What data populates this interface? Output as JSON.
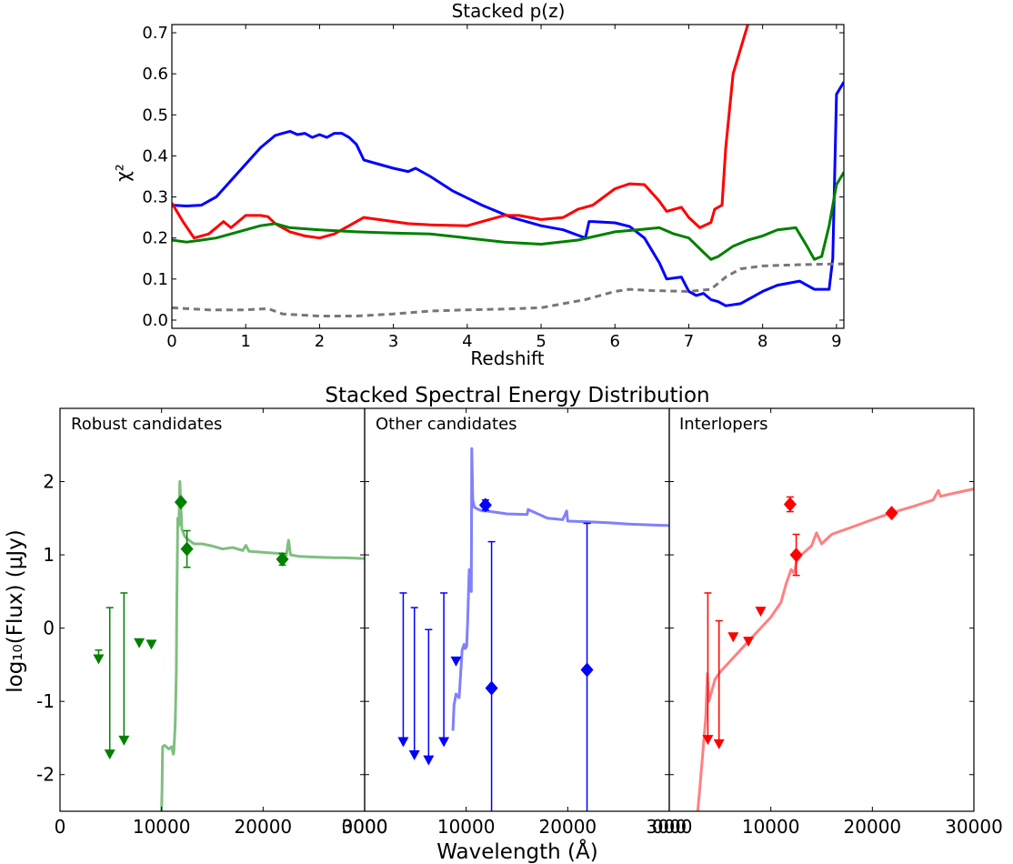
{
  "chart_data": [
    {
      "type": "line",
      "title": "Stacked p(z)",
      "xlabel": "Redshift",
      "ylabel": "χ²",
      "xlim": [
        0,
        9.1
      ],
      "ylim": [
        -0.02,
        0.72
      ],
      "xticks": [
        "0",
        "1",
        "2",
        "3",
        "4",
        "5",
        "6",
        "7",
        "8",
        "9"
      ],
      "yticks": [
        "0.0",
        "0.1",
        "0.2",
        "0.3",
        "0.4",
        "0.5",
        "0.6",
        "0.7"
      ],
      "series": [
        {
          "name": "blue",
          "color": "#0000ff",
          "dashed": false,
          "x": [
            0,
            0.2,
            0.4,
            0.6,
            0.8,
            1.0,
            1.2,
            1.4,
            1.5,
            1.6,
            1.7,
            1.8,
            1.9,
            2.0,
            2.1,
            2.2,
            2.3,
            2.4,
            2.5,
            2.6,
            2.8,
            3.0,
            3.2,
            3.3,
            3.5,
            3.8,
            4.2,
            4.6,
            5.0,
            5.3,
            5.6,
            5.65,
            5.7,
            6.0,
            6.2,
            6.4,
            6.6,
            6.7,
            6.9,
            7.0,
            7.1,
            7.2,
            7.3,
            7.4,
            7.5,
            7.7,
            8.0,
            8.2,
            8.5,
            8.7,
            8.9,
            8.95,
            9.0,
            9.1
          ],
          "y": [
            0.28,
            0.278,
            0.28,
            0.3,
            0.34,
            0.38,
            0.42,
            0.45,
            0.455,
            0.46,
            0.452,
            0.455,
            0.445,
            0.452,
            0.445,
            0.455,
            0.455,
            0.445,
            0.428,
            0.39,
            0.38,
            0.37,
            0.362,
            0.37,
            0.35,
            0.315,
            0.28,
            0.25,
            0.23,
            0.22,
            0.2,
            0.24,
            0.24,
            0.237,
            0.228,
            0.2,
            0.14,
            0.1,
            0.105,
            0.07,
            0.06,
            0.065,
            0.05,
            0.045,
            0.035,
            0.04,
            0.07,
            0.085,
            0.095,
            0.075,
            0.075,
            0.15,
            0.55,
            0.58
          ]
        },
        {
          "name": "red",
          "color": "#ff0000",
          "dashed": false,
          "x": [
            0,
            0.15,
            0.3,
            0.5,
            0.7,
            0.8,
            1.0,
            1.2,
            1.3,
            1.4,
            1.6,
            1.8,
            2.0,
            2.2,
            2.4,
            2.6,
            2.8,
            3.0,
            3.2,
            3.5,
            4.0,
            4.5,
            4.7,
            5.0,
            5.3,
            5.5,
            5.7,
            6.0,
            6.2,
            6.4,
            6.6,
            6.7,
            6.9,
            7.0,
            7.15,
            7.3,
            7.35,
            7.45,
            7.5,
            7.6,
            7.8
          ],
          "y": [
            0.285,
            0.24,
            0.2,
            0.21,
            0.24,
            0.225,
            0.255,
            0.255,
            0.252,
            0.235,
            0.215,
            0.205,
            0.2,
            0.21,
            0.23,
            0.25,
            0.245,
            0.24,
            0.235,
            0.232,
            0.23,
            0.255,
            0.255,
            0.245,
            0.25,
            0.27,
            0.28,
            0.32,
            0.332,
            0.33,
            0.29,
            0.265,
            0.275,
            0.25,
            0.225,
            0.238,
            0.27,
            0.28,
            0.42,
            0.6,
            0.72
          ]
        },
        {
          "name": "green",
          "color": "#008000",
          "dashed": false,
          "x": [
            0,
            0.2,
            0.4,
            0.6,
            0.8,
            1.0,
            1.2,
            1.4,
            1.6,
            2.0,
            2.5,
            3.0,
            3.5,
            4.0,
            4.5,
            5.0,
            5.5,
            6.0,
            6.3,
            6.6,
            6.8,
            7.0,
            7.2,
            7.3,
            7.4,
            7.6,
            7.8,
            8.0,
            8.2,
            8.45,
            8.6,
            8.7,
            8.8,
            8.9,
            9.0,
            9.1
          ],
          "y": [
            0.195,
            0.19,
            0.195,
            0.2,
            0.21,
            0.22,
            0.23,
            0.235,
            0.225,
            0.22,
            0.215,
            0.212,
            0.21,
            0.2,
            0.19,
            0.185,
            0.195,
            0.215,
            0.22,
            0.225,
            0.21,
            0.2,
            0.165,
            0.148,
            0.155,
            0.18,
            0.195,
            0.205,
            0.22,
            0.225,
            0.18,
            0.148,
            0.155,
            0.23,
            0.33,
            0.36
          ]
        },
        {
          "name": "gray-dashed",
          "color": "#777777",
          "dashed": true,
          "x": [
            0,
            0.5,
            1.0,
            1.3,
            1.5,
            2.0,
            2.5,
            3.0,
            3.5,
            4.0,
            4.5,
            5.0,
            5.3,
            5.6,
            5.8,
            6.0,
            6.2,
            6.5,
            7.0,
            7.3,
            7.5,
            7.7,
            8.0,
            8.5,
            9.1
          ],
          "y": [
            0.03,
            0.025,
            0.025,
            0.028,
            0.015,
            0.01,
            0.01,
            0.015,
            0.022,
            0.025,
            0.027,
            0.03,
            0.04,
            0.05,
            0.06,
            0.07,
            0.075,
            0.072,
            0.07,
            0.075,
            0.105,
            0.125,
            0.132,
            0.135,
            0.137
          ]
        }
      ]
    },
    {
      "type": "scatter",
      "title": "Stacked Spectral Energy Distribution",
      "xlabel": "Wavelength (Å)",
      "ylabel": "log₁₀(Flux) (μJy)",
      "ylim": [
        -2.5,
        3.0
      ],
      "yticks": [
        "2",
        "1",
        "0",
        "-1",
        "-2"
      ],
      "panels": [
        {
          "label": "Robust candidates",
          "xlim": [
            0,
            30000
          ],
          "xticks": [
            "0",
            "10000",
            "20000",
            "3000"
          ],
          "model_color": "#7fbf7f",
          "point_color": "#008000",
          "model": {
            "x": [
              10000,
              10050,
              10100,
              10300,
              10700,
              11000,
              11150,
              11200,
              11350,
              11450,
              11500,
              11600,
              11700,
              11800,
              12000,
              12300,
              12700,
              13200,
              14000,
              15000,
              16000,
              17000,
              18000,
              18300,
              18600,
              19500,
              20500,
              21500,
              22300,
              22500,
              22700,
              23500,
              25000,
              27000,
              28000,
              30000
            ],
            "y": [
              -2.5,
              -2.2,
              -1.62,
              -1.6,
              -1.65,
              -1.62,
              -1.72,
              -1.7,
              -1.3,
              -0.6,
              0.3,
              1.5,
              1.4,
              2.0,
              1.35,
              1.25,
              1.2,
              1.15,
              1.15,
              1.12,
              1.08,
              1.1,
              1.06,
              1.13,
              1.05,
              1.04,
              1.03,
              1.02,
              1.0,
              1.2,
              1.0,
              0.98,
              0.97,
              0.96,
              0.96,
              0.95
            ]
          },
          "detections": [
            {
              "x": 11900,
              "y": 1.72,
              "yerr": 0.03
            },
            {
              "x": 12500,
              "y": 1.08,
              "yerr": 0.25
            },
            {
              "x": 21900,
              "y": 0.94,
              "yerr": 0.08
            }
          ],
          "upper_limits": [
            {
              "x": 3800,
              "y": -0.42,
              "bar_top": -0.3
            },
            {
              "x": 4900,
              "y": -1.72,
              "bar_top": 0.28
            },
            {
              "x": 6300,
              "y": -1.53,
              "bar_top": 0.48
            },
            {
              "x": 7800,
              "y": -0.2,
              "bar_top": -0.15
            },
            {
              "x": 9000,
              "y": -0.22,
              "bar_top": -0.17
            }
          ]
        },
        {
          "label": "Other candidates",
          "xlim": [
            0,
            30000
          ],
          "xticks": [
            "0000",
            "10000",
            "20000",
            "3000"
          ],
          "model_color": "#8080ff",
          "point_color": "#0000ff",
          "model": {
            "x": [
              8700,
              8800,
              9000,
              9300,
              9600,
              9800,
              9900,
              10050,
              10150,
              10300,
              10500,
              10550,
              10650,
              10800,
              11200,
              11600,
              12000,
              13000,
              14000,
              16000,
              16100,
              18000,
              19500,
              19900,
              20000,
              22000,
              24000,
              26000,
              28000,
              30000
            ],
            "y": [
              -1.4,
              -1.05,
              -0.9,
              -0.95,
              -0.3,
              -0.22,
              -0.28,
              -0.25,
              0.1,
              0.8,
              0.5,
              2.45,
              1.75,
              1.65,
              1.62,
              1.6,
              1.6,
              1.58,
              1.56,
              1.55,
              1.62,
              1.5,
              1.48,
              1.6,
              1.46,
              1.45,
              1.44,
              1.42,
              1.41,
              1.4
            ]
          },
          "detections": [
            {
              "x": 11900,
              "y": 1.68,
              "yerr": 0.07
            },
            {
              "x": 12500,
              "y": -0.82,
              "yerr": 2.0
            },
            {
              "x": 21900,
              "y": -0.57,
              "yerr": 2.0
            }
          ],
          "upper_limits": [
            {
              "x": 3800,
              "y": -1.55,
              "bar_top": 0.48
            },
            {
              "x": 4900,
              "y": -1.73,
              "bar_top": 0.28
            },
            {
              "x": 6300,
              "y": -1.8,
              "bar_top": -0.02
            },
            {
              "x": 7800,
              "y": -1.55,
              "bar_top": 0.48
            },
            {
              "x": 9000,
              "y": -0.45,
              "bar_top": -0.4
            }
          ]
        },
        {
          "label": "Interlopers",
          "xlim": [
            0,
            30000
          ],
          "xticks": [
            "000",
            "10000",
            "20000",
            "30000"
          ],
          "model_color": "#ff8080",
          "point_color": "#ff0000",
          "model": {
            "x": [
              2800,
              3000,
              3300,
              3600,
              3750,
              3900,
              4100,
              4500,
              5000,
              6000,
              7000,
              8000,
              9000,
              10000,
              11000,
              11500,
              12000,
              12300,
              12500,
              13000,
              14000,
              14500,
              15000,
              16000,
              18000,
              20000,
              22000,
              24000,
              26000,
              26500,
              26700,
              28000,
              30000
            ],
            "y": [
              -2.5,
              -2.2,
              -1.7,
              -1.2,
              -0.62,
              -1.0,
              -0.9,
              -0.7,
              -0.6,
              -0.45,
              -0.3,
              -0.15,
              0.0,
              0.15,
              0.35,
              0.6,
              0.8,
              0.75,
              0.9,
              1.0,
              1.12,
              1.3,
              1.15,
              1.28,
              1.38,
              1.48,
              1.58,
              1.66,
              1.75,
              1.88,
              1.8,
              1.84,
              1.9
            ]
          },
          "detections": [
            {
              "x": 11900,
              "y": 1.69,
              "yerr": 0.1
            },
            {
              "x": 12500,
              "y": 1.0,
              "yerr": 0.28
            },
            {
              "x": 21900,
              "y": 1.57,
              "yerr": 0.04
            }
          ],
          "upper_limits": [
            {
              "x": 3800,
              "y": -1.52,
              "bar_top": 0.48
            },
            {
              "x": 4900,
              "y": -1.58,
              "bar_top": 0.1
            },
            {
              "x": 6300,
              "y": -0.12,
              "bar_top": -0.07
            },
            {
              "x": 7800,
              "y": -0.18,
              "bar_top": -0.13
            },
            {
              "x": 9000,
              "y": 0.23,
              "bar_top": 0.27
            }
          ]
        }
      ]
    }
  ]
}
